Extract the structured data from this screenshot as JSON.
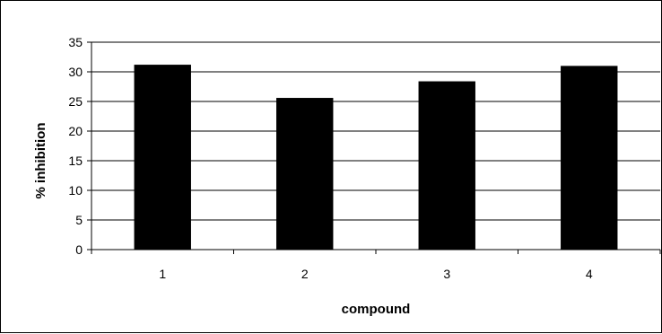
{
  "chart_data": {
    "type": "bar",
    "categories": [
      "1",
      "2",
      "3",
      "4"
    ],
    "values": [
      31.2,
      25.6,
      28.4,
      31.0
    ],
    "title": "",
    "xlabel": "compound",
    "ylabel": "% inhibition",
    "ylim": [
      0,
      35
    ],
    "yticks": [
      0,
      5,
      10,
      15,
      20,
      25,
      30,
      35
    ],
    "grid": true,
    "legend": "none",
    "bar_color": "#000000",
    "grid_color": "#000000"
  }
}
